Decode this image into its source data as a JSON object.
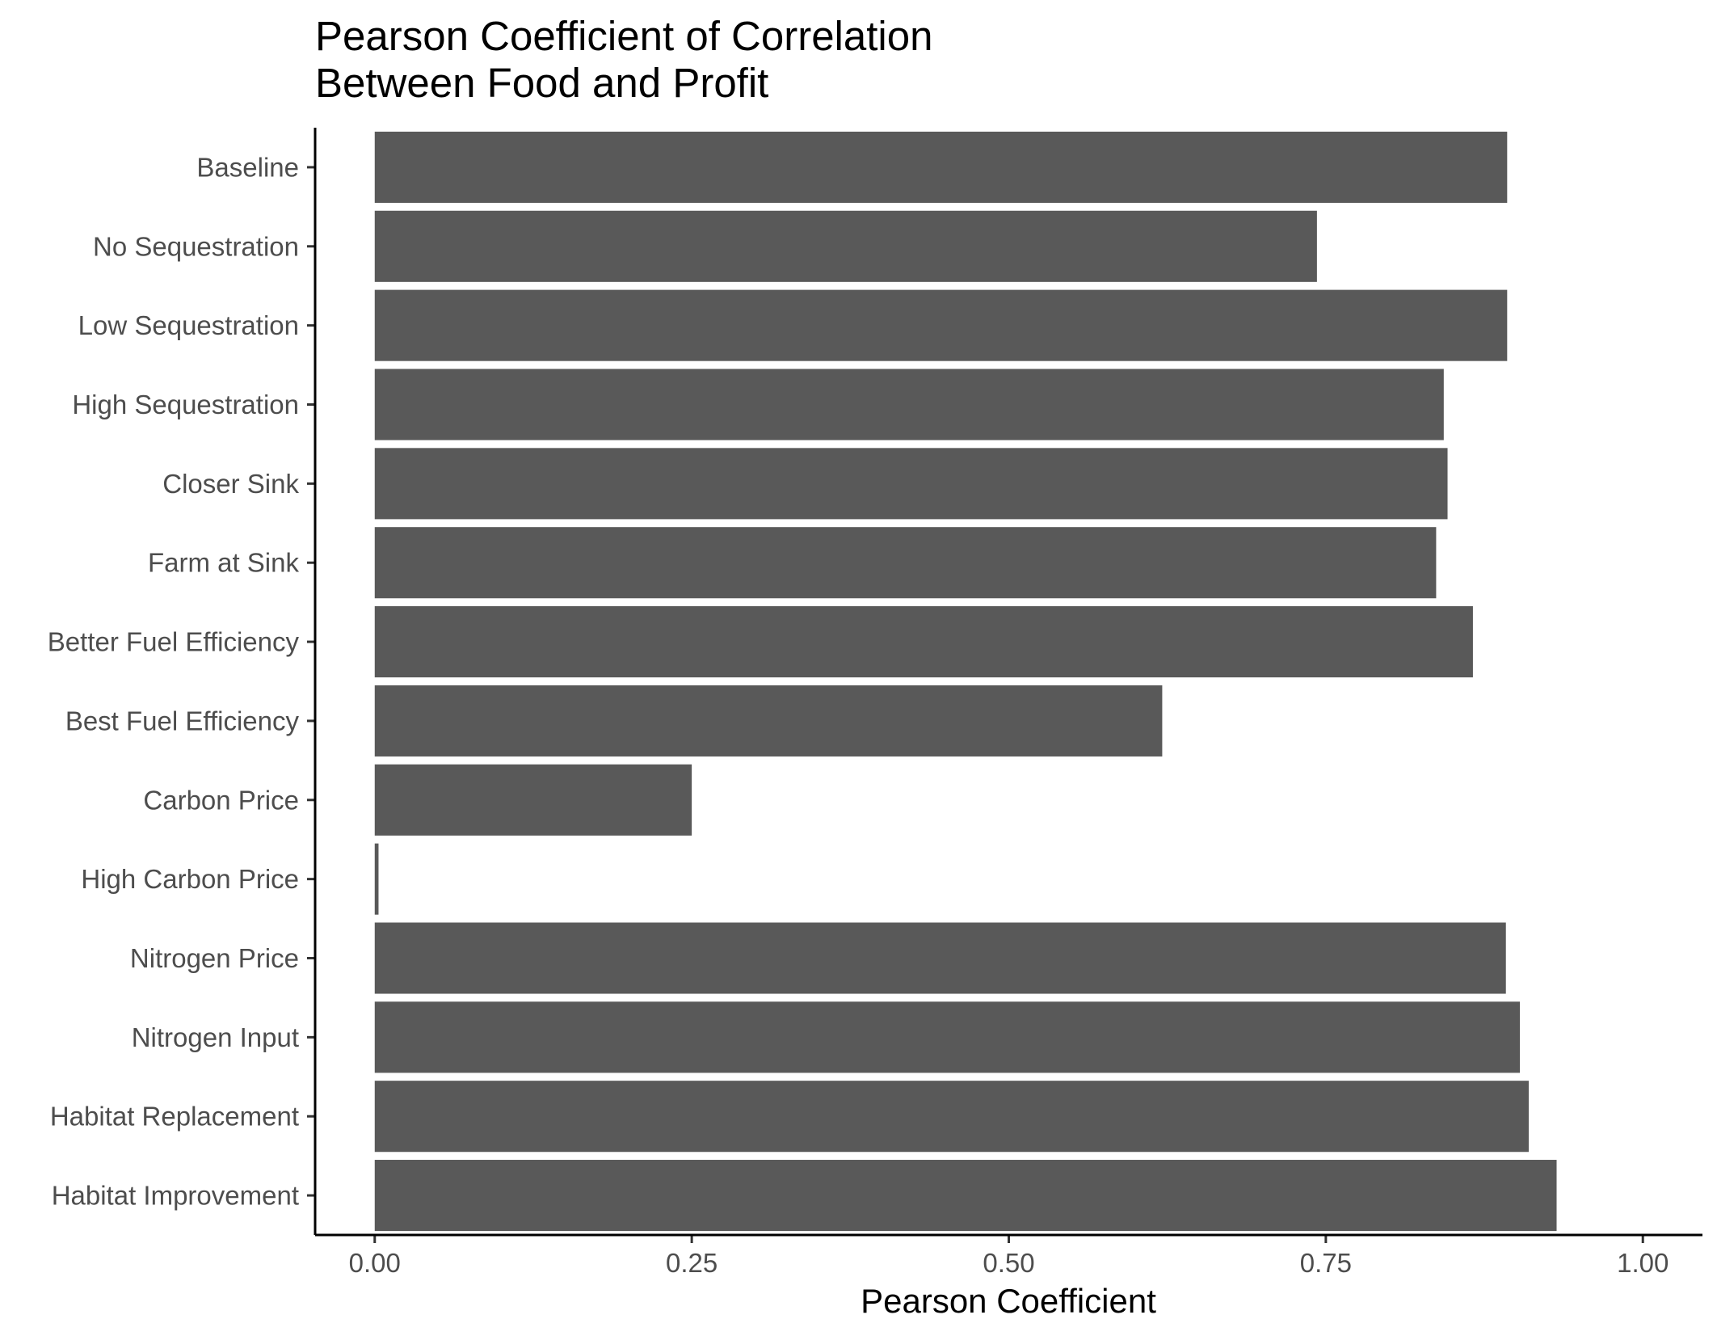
{
  "chart_data": {
    "type": "bar",
    "orientation": "horizontal",
    "title": [
      "Pearson Coefficient of Correlation",
      "Between Food and Profit"
    ],
    "xlabel": "Pearson Coefficient",
    "ylabel": "",
    "categories": [
      "Baseline",
      "No Sequestration",
      "Low Sequestration",
      "High Sequestration",
      "Closer Sink",
      "Farm at Sink",
      "Better Fuel Efficiency",
      "Best Fuel Efficiency",
      "Carbon Price",
      "High Carbon Price",
      "Nitrogen Price",
      "Nitrogen Input",
      "Habitat Replacement",
      "Habitat Improvement"
    ],
    "values": [
      0.893,
      0.743,
      0.893,
      0.843,
      0.846,
      0.837,
      0.866,
      0.621,
      0.25,
      0.003,
      0.892,
      0.903,
      0.91,
      0.932
    ],
    "xlim": [
      -0.047,
      1.047
    ],
    "xticks": [
      0,
      0.25,
      0.5,
      0.75,
      1.0
    ],
    "xtick_labels": [
      "0.00",
      "0.25",
      "0.50",
      "0.75",
      "1.00"
    ],
    "grid": false,
    "legend": "none",
    "bar_color": "#595959"
  }
}
